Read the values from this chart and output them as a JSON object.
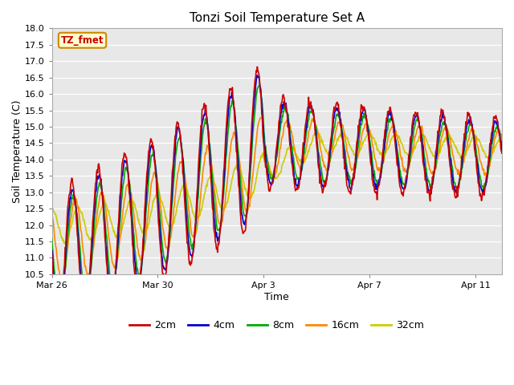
{
  "title": "Tonzi Soil Temperature Set A",
  "xlabel": "Time",
  "ylabel": "Soil Temperature (C)",
  "ylim": [
    10.5,
    18.0
  ],
  "yticks": [
    10.5,
    11.0,
    11.5,
    12.0,
    12.5,
    13.0,
    13.5,
    14.0,
    14.5,
    15.0,
    15.5,
    16.0,
    16.5,
    17.0,
    17.5,
    18.0
  ],
  "plot_bg": "#e8e8e8",
  "fig_bg": "#ffffff",
  "legend_entries": [
    "2cm",
    "4cm",
    "8cm",
    "16cm",
    "32cm"
  ],
  "legend_colors": [
    "#cc0000",
    "#0000cc",
    "#00aa00",
    "#ff8800",
    "#cccc00"
  ],
  "annotation_text": "TZ_fmet",
  "annotation_color": "#cc0000",
  "annotation_bg": "#ffffcc",
  "annotation_border": "#cc8800",
  "xtick_labels": [
    "Mar 26",
    "Mar 30",
    "Apr 3",
    "Apr 7",
    "Apr 11"
  ],
  "xtick_positions": [
    0,
    4,
    8,
    12,
    16
  ]
}
